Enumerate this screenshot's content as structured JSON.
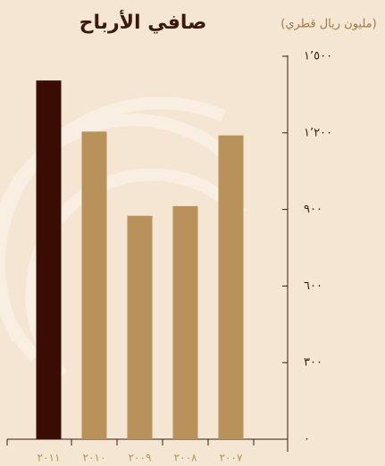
{
  "chart_data": {
    "type": "bar",
    "title": "صافي الأرباح",
    "subtitle": "(مليون ريال قطري)",
    "categories": [
      "٢٠١١",
      "٢٠١٠",
      "٢٠٠٩",
      "٢٠٠٨",
      "٢٠٠٧"
    ],
    "values": [
      1405,
      1205,
      875,
      913,
      1190
    ],
    "colors": [
      "#3a0d04",
      "#b8925a",
      "#b8925a",
      "#b8925a",
      "#b8925a"
    ],
    "ylim": [
      0,
      1500
    ],
    "yticks": [
      {
        "value": 0,
        "label": "٠"
      },
      {
        "value": 300,
        "label": "٣٠٠"
      },
      {
        "value": 600,
        "label": "٦٠٠"
      },
      {
        "value": 900,
        "label": "٩٠٠"
      },
      {
        "value": 1200,
        "label": "١٬٢٠٠"
      },
      {
        "value": 1500,
        "label": "١٬٥٠٠"
      }
    ]
  }
}
